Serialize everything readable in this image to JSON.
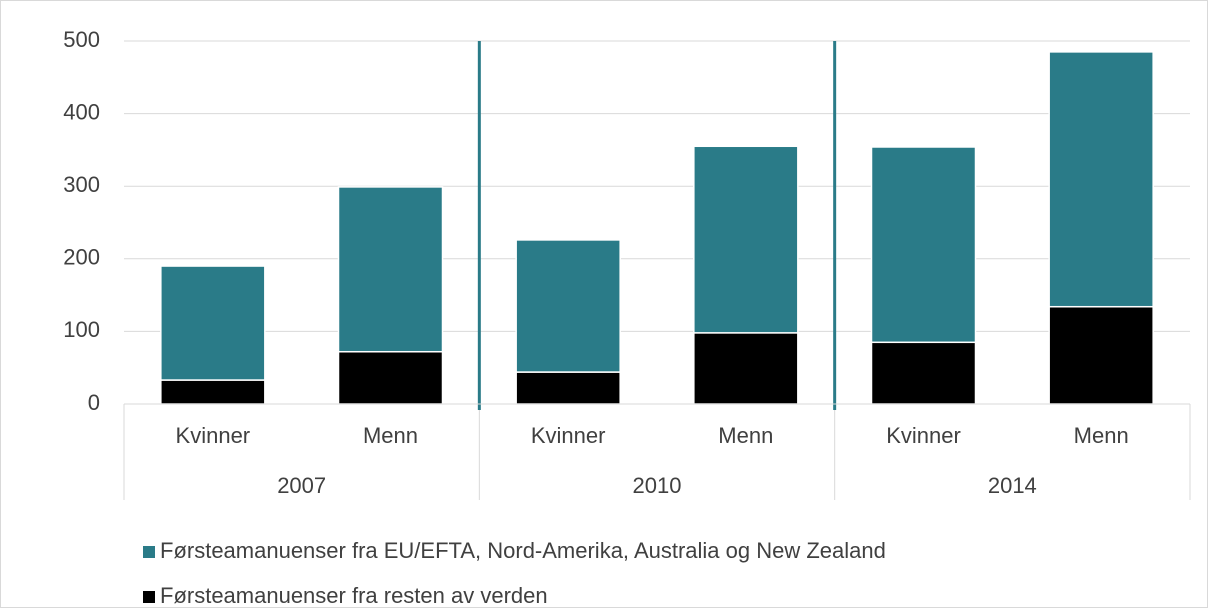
{
  "chart_data": {
    "type": "stacked_bar",
    "categories": [
      "Kvinner",
      "Menn",
      "Kvinner",
      "Menn",
      "Kvinner",
      "Menn"
    ],
    "groups": [
      "2007",
      "2010",
      "2014"
    ],
    "series": [
      {
        "name": "Førsteamanuenser fra EU/EFTA, Nord-Amerika, Australia og New Zealand",
        "color": "#2a7b88",
        "values": [
          157,
          227,
          182,
          257,
          269,
          351
        ]
      },
      {
        "name": "Førsteamanuenser fra resten av verden",
        "color": "#000000",
        "values": [
          33,
          72,
          44,
          98,
          85,
          134
        ]
      }
    ],
    "ylim": [
      0,
      500
    ],
    "yticks": [
      0,
      100,
      200,
      300,
      400,
      500
    ],
    "grid": true,
    "legend": "bottom"
  }
}
